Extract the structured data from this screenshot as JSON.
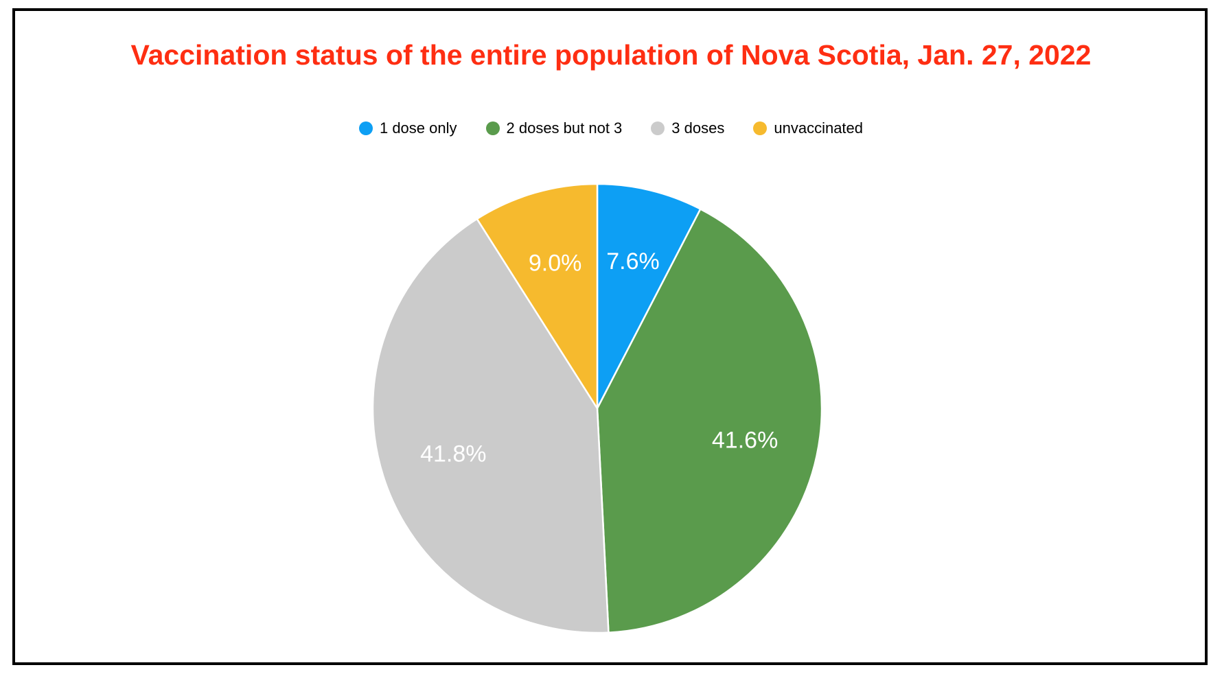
{
  "frame": {
    "border_color": "#000000",
    "background_color": "#ffffff"
  },
  "title": {
    "text": "Vaccination status of the entire population of Nova Scotia, Jan. 27, 2022",
    "color": "#fe2e12"
  },
  "legend": {
    "items": [
      {
        "label": "1 dose only",
        "color": "#0d9ff4"
      },
      {
        "label": "2 doses but not 3",
        "color": "#5a9b4c"
      },
      {
        "label": "3 doses",
        "color": "#cbcbcb"
      },
      {
        "label": "unvaccinated",
        "color": "#f6ba2e"
      }
    ]
  },
  "chart_data": {
    "type": "pie",
    "title": "Vaccination status of the entire population of Nova Scotia, Jan. 27, 2022",
    "legend_position": "top",
    "direction": "clockwise",
    "start_angle_deg": 0,
    "label_color": "#ffffff",
    "slices": [
      {
        "label": "1 dose only",
        "value": 7.6,
        "display": "7.6%",
        "color": "#0d9ff4"
      },
      {
        "label": "2 doses but not 3",
        "value": 41.6,
        "display": "41.6%",
        "color": "#5a9b4c"
      },
      {
        "label": "3 doses",
        "value": 41.8,
        "display": "41.8%",
        "color": "#cbcbcb"
      },
      {
        "label": "unvaccinated",
        "value": 9.0,
        "display": "9.0%",
        "color": "#f6ba2e"
      }
    ]
  }
}
